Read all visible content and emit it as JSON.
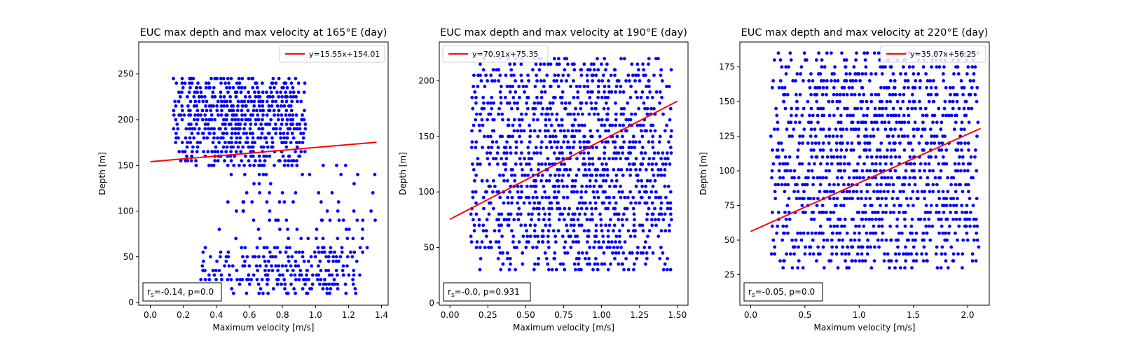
{
  "chart_data": [
    {
      "type": "scatter",
      "title": "EUC max depth and max velocity at 165°E (day)",
      "xlabel": "Maximum velocity [m/s]",
      "ylabel": "Depth [m]",
      "xlim": [
        -0.07,
        1.44
      ],
      "ylim": [
        -3,
        285
      ],
      "xticks": [
        0.0,
        0.2,
        0.4,
        0.6,
        0.8,
        1.0,
        1.2,
        1.4
      ],
      "xtick_labels": [
        "0.0",
        "0.2",
        "0.4",
        "0.6",
        "0.8",
        "1.0",
        "1.2",
        "1.4"
      ],
      "yticks": [
        0,
        50,
        100,
        150,
        200,
        250
      ],
      "ytick_labels": [
        "0",
        "50",
        "100",
        "150",
        "200",
        "250"
      ],
      "scatter_color": "#0000ff",
      "fit": {
        "slope": 15.55,
        "intercept": 154.01,
        "x_range": [
          0.0,
          1.37
        ],
        "color": "#ff0000",
        "label": "y=15.55x+154.01"
      },
      "legend": {
        "position": "top-right",
        "label": "y=15.55x+154.01"
      },
      "stats": {
        "prefix": "r",
        "sub": "s",
        "text": "=-0.14, p=0.0"
      },
      "clusters": [
        {
          "x": [
            0.15,
            0.95
          ],
          "y": [
            150,
            245
          ],
          "step": 5,
          "xstep": 0.02,
          "density": 0.85
        },
        {
          "x": [
            0.3,
            1.3
          ],
          "y": [
            10,
            60
          ],
          "step": 5,
          "xstep": 0.02,
          "density": 0.55
        },
        {
          "x": [
            0.4,
            1.35
          ],
          "y": [
            60,
            150
          ],
          "step": 10,
          "xstep": 0.025,
          "density": 0.3
        }
      ]
    },
    {
      "type": "scatter",
      "title": "EUC max depth and max velocity at 190°E (day)",
      "xlabel": "Maximum velocity [m/s]",
      "ylabel": "Depth [m]",
      "xlim": [
        -0.07,
        1.57
      ],
      "ylim": [
        -2,
        235
      ],
      "xticks": [
        0.0,
        0.25,
        0.5,
        0.75,
        1.0,
        1.25,
        1.5
      ],
      "xtick_labels": [
        "0.00",
        "0.25",
        "0.50",
        "0.75",
        "1.00",
        "1.25",
        "1.50"
      ],
      "yticks": [
        0,
        50,
        100,
        150,
        200
      ],
      "ytick_labels": [
        "0",
        "50",
        "100",
        "150",
        "200"
      ],
      "scatter_color": "#0000ff",
      "fit": {
        "slope": 70.91,
        "intercept": 75.35,
        "x_range": [
          0.0,
          1.5
        ],
        "color": "#ff0000",
        "label": "y=70.91x+75.35"
      },
      "legend": {
        "position": "top-left",
        "label": "y=70.91x+75.35"
      },
      "stats": {
        "prefix": "r",
        "sub": "s",
        "text": "=-0.0, p=0.931"
      },
      "clusters": [
        {
          "x": [
            0.15,
            1.45
          ],
          "y": [
            30,
            220
          ],
          "step": 5,
          "xstep": 0.025,
          "density": 0.75
        }
      ]
    },
    {
      "type": "scatter",
      "title": "EUC max depth and max velocity at 220°E (day)",
      "xlabel": "Maximum velocity [m/s]",
      "ylabel": "Depth [m]",
      "xlim": [
        -0.1,
        2.2
      ],
      "ylim": [
        3,
        193
      ],
      "xticks": [
        0.0,
        0.5,
        1.0,
        1.5,
        2.0
      ],
      "xtick_labels": [
        "0.0",
        "0.5",
        "1.0",
        "1.5",
        "2.0"
      ],
      "yticks": [
        25,
        50,
        75,
        100,
        125,
        150,
        175
      ],
      "ytick_labels": [
        "25",
        "50",
        "75",
        "100",
        "125",
        "150",
        "175"
      ],
      "scatter_color": "#0000ff",
      "fit": {
        "slope": 35.07,
        "intercept": 56.25,
        "x_range": [
          0.0,
          2.12
        ],
        "color": "#ff0000",
        "label": "y=35.07x+56.25"
      },
      "legend": {
        "position": "top-right",
        "label": "y=35.07x+56.25"
      },
      "stats": {
        "prefix": "r",
        "sub": "s",
        "text": "=-0.05, p=0.0"
      },
      "clusters": [
        {
          "x": [
            0.2,
            2.1
          ],
          "y": [
            30,
            185
          ],
          "step": 5,
          "xstep": 0.03,
          "density": 0.7
        }
      ]
    }
  ]
}
